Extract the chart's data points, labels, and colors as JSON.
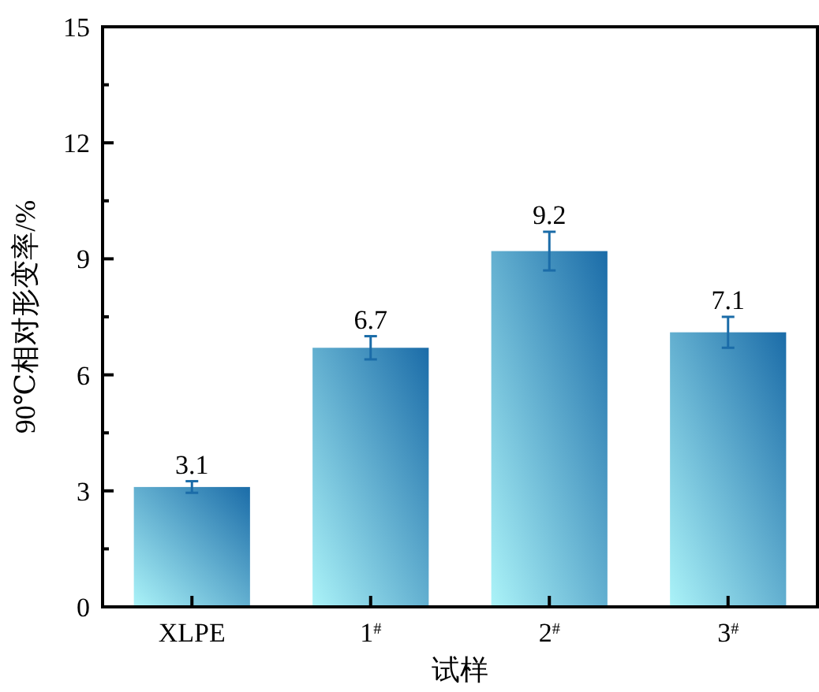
{
  "chart_data": {
    "type": "bar",
    "xlabel": "试样",
    "ylabel": "90℃相对形变率/%",
    "categories": [
      "XLPE",
      "1$^{#}$",
      "2$^{#}$",
      "3$^{#}$"
    ],
    "values": [
      3.1,
      6.7,
      9.2,
      7.1
    ],
    "errors": [
      0.15,
      0.3,
      0.5,
      0.4
    ],
    "color": "#1b6ca8",
    "data_labels": true,
    "ylim": [
      0,
      15
    ],
    "yticks": [
      0,
      {
        "value": 1.5,
        "label": null
      },
      3,
      {
        "value": 4.5,
        "label": null
      },
      6,
      {
        "value": 7.5,
        "label": null
      },
      9,
      {
        "value": 10.5,
        "label": null
      },
      12,
      {
        "value": 13.5,
        "label": null
      },
      15
    ],
    "grid": false
  }
}
